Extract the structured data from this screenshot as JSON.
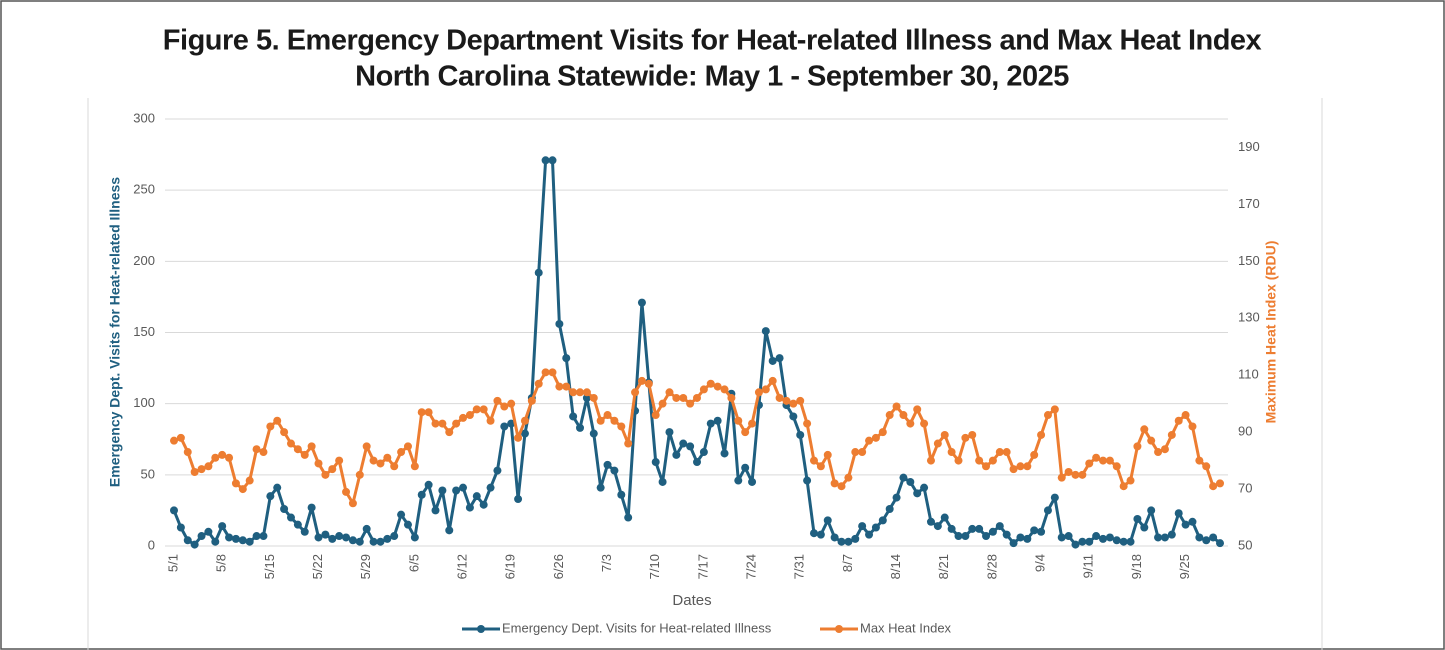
{
  "chart_data": {
    "type": "line",
    "title": "Figure 5. Emergency Department Visits for Heat-related Illness and Max Heat Index",
    "subtitle": "North Carolina Statewide: May 1 -  September 30, 2025",
    "x_label": "Dates",
    "y_label": "Emergency Dept. Visits for Heat-related Illness",
    "y2_label": "Maximum Heat Index (RDU)",
    "legend": "bottom",
    "grid": true,
    "ylim": [
      0,
      300
    ],
    "yticks": [
      0,
      50,
      100,
      150,
      200,
      250,
      300
    ],
    "y2lim": [
      50,
      200
    ],
    "y2ticks": [
      50,
      70,
      90,
      110,
      130,
      150,
      170,
      190
    ],
    "categories": [
      "5/1",
      null,
      null,
      null,
      null,
      null,
      null,
      "5/8",
      null,
      null,
      null,
      null,
      null,
      null,
      "5/15",
      null,
      null,
      null,
      null,
      null,
      null,
      "5/22",
      null,
      null,
      null,
      null,
      null,
      null,
      "5/29",
      null,
      null,
      null,
      null,
      null,
      null,
      "6/5",
      null,
      null,
      null,
      null,
      null,
      null,
      "6/12",
      null,
      null,
      null,
      null,
      null,
      null,
      "6/19",
      null,
      null,
      null,
      null,
      null,
      null,
      "6/26",
      null,
      null,
      null,
      null,
      null,
      null,
      "7/3",
      null,
      null,
      null,
      null,
      null,
      null,
      "7/10",
      null,
      null,
      null,
      null,
      null,
      null,
      "7/17",
      null,
      null,
      null,
      null,
      null,
      null,
      "7/24",
      null,
      null,
      null,
      null,
      null,
      null,
      "7/31",
      null,
      null,
      null,
      null,
      null,
      null,
      "8/7",
      null,
      null,
      null,
      null,
      null,
      null,
      "8/14",
      null,
      null,
      null,
      null,
      null,
      null,
      "8/21",
      null,
      null,
      null,
      null,
      null,
      null,
      "8/28",
      null,
      null,
      null,
      null,
      null,
      null,
      "9/4",
      null,
      null,
      null,
      null,
      null,
      null,
      "9/11",
      null,
      null,
      null,
      null,
      null,
      null,
      "9/18",
      null,
      null,
      null,
      null,
      null,
      null,
      "9/25",
      null,
      null,
      null,
      null,
      null
    ],
    "series": [
      {
        "name": "Emergency Dept. Visits for Heat-related Illness",
        "color": "#1f5f80",
        "values": [
          25,
          13,
          4,
          1,
          7,
          10,
          3,
          14,
          6,
          5,
          4,
          3,
          7,
          7,
          35,
          41,
          26,
          20,
          15,
          10,
          27,
          6,
          8,
          5,
          7,
          6,
          4,
          3,
          12,
          3,
          3,
          5,
          7,
          22,
          15,
          6,
          36,
          43,
          25,
          39,
          11,
          39,
          41,
          27,
          35,
          29,
          41,
          53,
          84,
          86,
          33,
          79,
          104,
          192,
          271,
          271,
          156,
          132,
          91,
          83,
          104,
          79,
          41,
          57,
          53,
          36,
          20,
          95,
          171,
          115,
          59,
          45,
          80,
          64,
          72,
          70,
          59,
          66,
          86,
          88,
          65,
          107,
          46,
          55,
          45,
          99,
          151,
          130,
          132,
          99,
          91,
          78,
          46,
          9,
          8,
          18,
          6,
          3,
          3,
          5,
          14,
          8,
          13,
          18,
          26,
          34,
          48,
          45,
          37,
          41,
          17,
          14,
          20,
          12,
          7,
          7,
          12,
          12,
          7,
          10,
          14,
          8,
          2,
          6,
          5,
          11,
          10,
          25,
          34,
          6,
          7,
          1,
          3,
          3,
          7,
          5,
          6,
          4,
          3,
          3,
          19,
          13,
          25,
          6,
          6,
          8,
          23,
          15,
          17,
          6,
          4,
          6,
          2
        ]
      },
      {
        "name": "Max Heat Index",
        "color": "#ed7d31",
        "axis": "y2",
        "values": [
          87,
          88,
          83,
          76,
          77,
          78,
          81,
          82,
          81,
          72,
          70,
          73,
          84,
          83,
          92,
          94,
          90,
          86,
          84,
          82,
          85,
          79,
          75,
          77,
          80,
          69,
          65,
          75,
          85,
          80,
          79,
          81,
          78,
          83,
          85,
          78,
          97,
          97,
          93,
          93,
          90,
          93,
          95,
          96,
          98,
          98,
          94,
          101,
          99,
          100,
          88,
          94,
          101,
          107,
          111,
          111,
          106,
          106,
          104,
          104,
          104,
          102,
          94,
          96,
          94,
          92,
          86,
          104,
          108,
          107,
          96,
          100,
          104,
          102,
          102,
          100,
          102,
          105,
          107,
          106,
          105,
          102,
          94,
          90,
          93,
          104,
          105,
          108,
          102,
          101,
          100,
          101,
          93,
          80,
          78,
          82,
          72,
          71,
          74,
          83,
          83,
          87,
          88,
          90,
          96,
          99,
          96,
          93,
          98,
          93,
          80,
          86,
          89,
          83,
          80,
          88,
          89,
          80,
          78,
          80,
          83,
          83,
          77,
          78,
          78,
          82,
          89,
          96,
          98,
          74,
          76,
          75,
          75,
          79,
          81,
          80,
          80,
          78,
          71,
          73,
          85,
          91,
          87,
          83,
          84,
          89,
          94,
          96,
          92,
          80,
          78,
          71,
          72
        ]
      }
    ]
  }
}
